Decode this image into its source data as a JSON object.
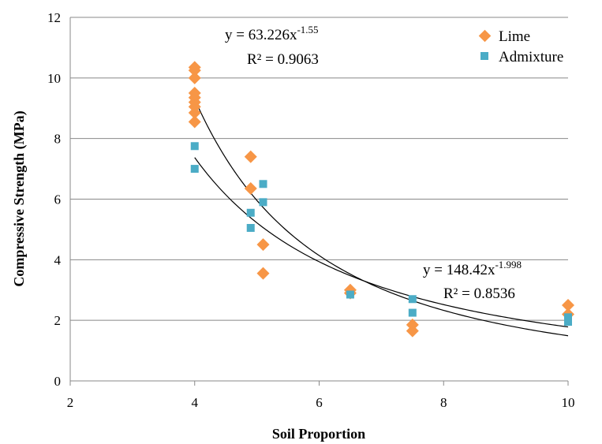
{
  "chart_data": {
    "type": "scatter",
    "xlabel": "Soil Proportion",
    "ylabel": "Compressive Strength (MPa)",
    "xlim": [
      2,
      10
    ],
    "ylim": [
      0,
      12
    ],
    "x_ticks": [
      "2",
      "4",
      "6",
      "8",
      "10"
    ],
    "y_ticks": [
      "0",
      "2",
      "4",
      "6",
      "8",
      "10",
      "12"
    ],
    "grid": "horizontal",
    "legend": "top-right",
    "series": [
      {
        "name": "Lime",
        "marker": "diamond",
        "color": "#F79646",
        "points": [
          [
            4,
            10.35
          ],
          [
            4,
            10.25
          ],
          [
            4,
            10.0
          ],
          [
            4,
            9.5
          ],
          [
            4,
            9.35
          ],
          [
            4,
            9.2
          ],
          [
            4,
            9.05
          ],
          [
            4,
            8.85
          ],
          [
            4,
            8.55
          ],
          [
            4.9,
            7.4
          ],
          [
            4.9,
            6.35
          ],
          [
            5.1,
            4.5
          ],
          [
            5.1,
            3.55
          ],
          [
            6.5,
            3.0
          ],
          [
            6.5,
            2.9
          ],
          [
            7.5,
            1.85
          ],
          [
            7.5,
            1.65
          ],
          [
            10,
            2.5
          ],
          [
            10,
            2.2
          ]
        ],
        "trendline": {
          "a": 63.226,
          "b": -1.55,
          "from": 4,
          "to": 10
        }
      },
      {
        "name": "Admixture",
        "marker": "square",
        "color": "#4BACC6",
        "points": [
          [
            4,
            7.75
          ],
          [
            4,
            7.0
          ],
          [
            4.9,
            5.55
          ],
          [
            4.9,
            5.05
          ],
          [
            5.1,
            6.5
          ],
          [
            5.1,
            5.9
          ],
          [
            6.5,
            2.85
          ],
          [
            7.5,
            2.7
          ],
          [
            7.5,
            2.25
          ],
          [
            10,
            2.1
          ],
          [
            10,
            1.95
          ]
        ],
        "trendline": {
          "a": 148.42,
          "b": -1.998,
          "from": 4,
          "to": 10
        }
      }
    ],
    "annotations": [
      {
        "base": "y = 63.226x",
        "exp": "-1.55",
        "r2": "R² = 0.9063"
      },
      {
        "base": "y = 148.42x",
        "exp": "-1.998",
        "r2": "R² = 0.8536"
      }
    ]
  }
}
